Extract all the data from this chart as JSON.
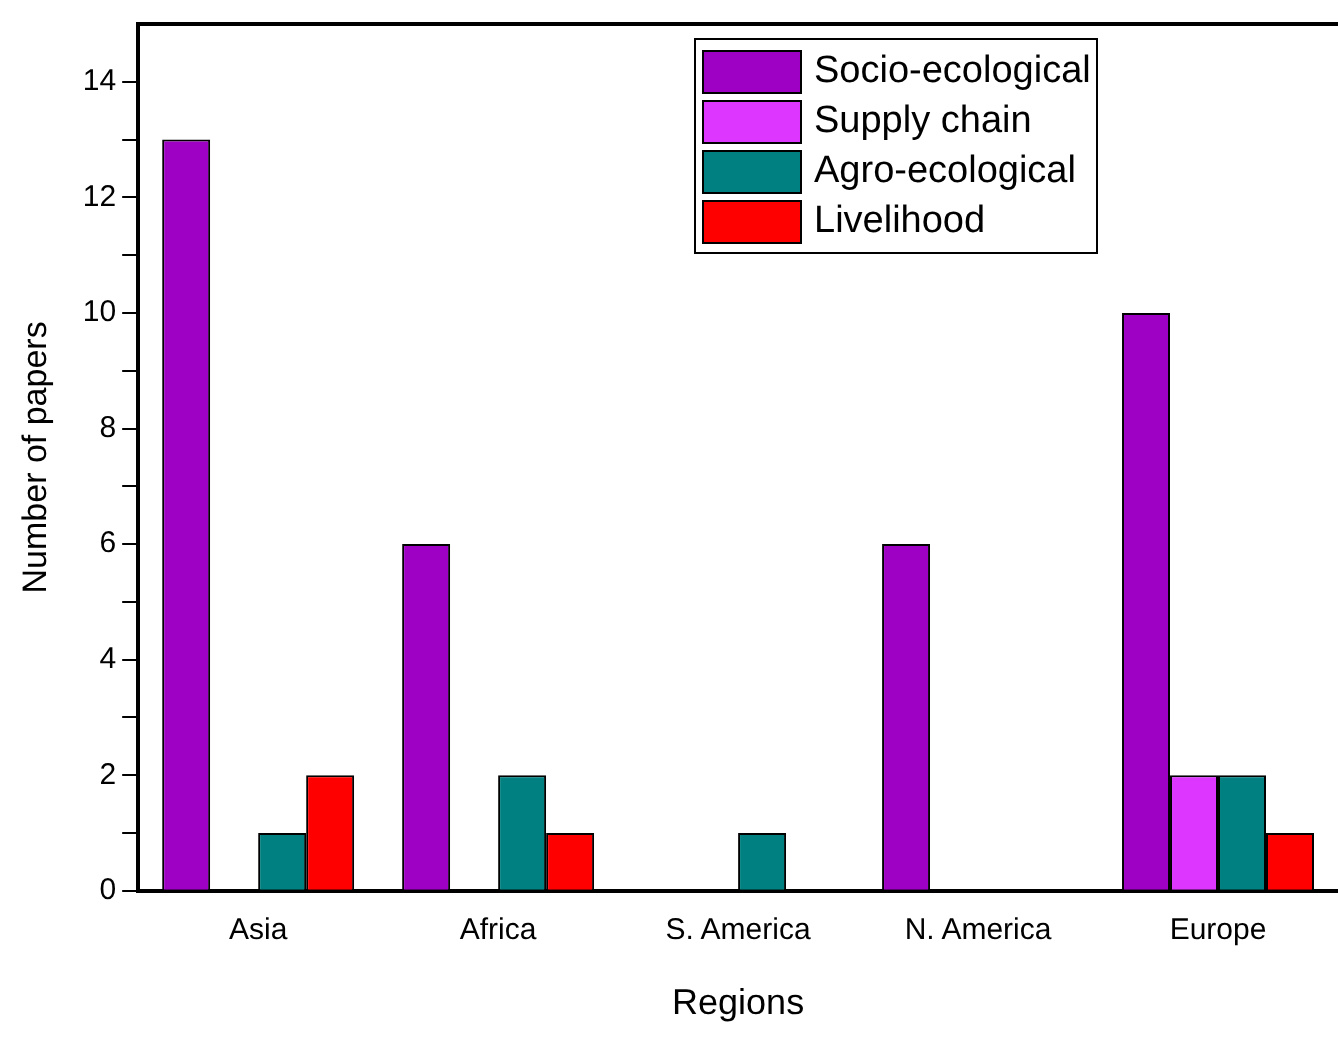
{
  "chart_data": {
    "type": "bar",
    "xlabel": "Regions",
    "ylabel": "Number of papers",
    "categories": [
      "Asia",
      "Africa",
      "S. America",
      "N. America",
      "Europe"
    ],
    "series": [
      {
        "name": "Socio-ecological",
        "color": "#9e00c4",
        "values": [
          13,
          6,
          0,
          6,
          10
        ]
      },
      {
        "name": "Supply chain",
        "color": "#dc36ff",
        "values": [
          0,
          0,
          0,
          0,
          2
        ]
      },
      {
        "name": "Agro-ecological",
        "color": "#008080",
        "values": [
          1,
          2,
          1,
          0,
          2
        ]
      },
      {
        "name": "Livelihood",
        "color": "#ff0000",
        "values": [
          2,
          1,
          0,
          0,
          1
        ]
      }
    ],
    "ylim": [
      0,
      15
    ],
    "yticks": [
      0,
      {
        "value": 1,
        "label": null
      },
      2,
      {
        "value": 3,
        "label": null
      },
      4,
      {
        "value": 5,
        "label": null
      },
      6,
      {
        "value": 7,
        "label": null
      },
      8,
      {
        "value": 9,
        "label": null
      },
      10,
      {
        "value": 11,
        "label": null
      },
      12,
      {
        "value": 13,
        "label": null
      },
      14
    ],
    "grid": false,
    "legend": "top right"
  }
}
